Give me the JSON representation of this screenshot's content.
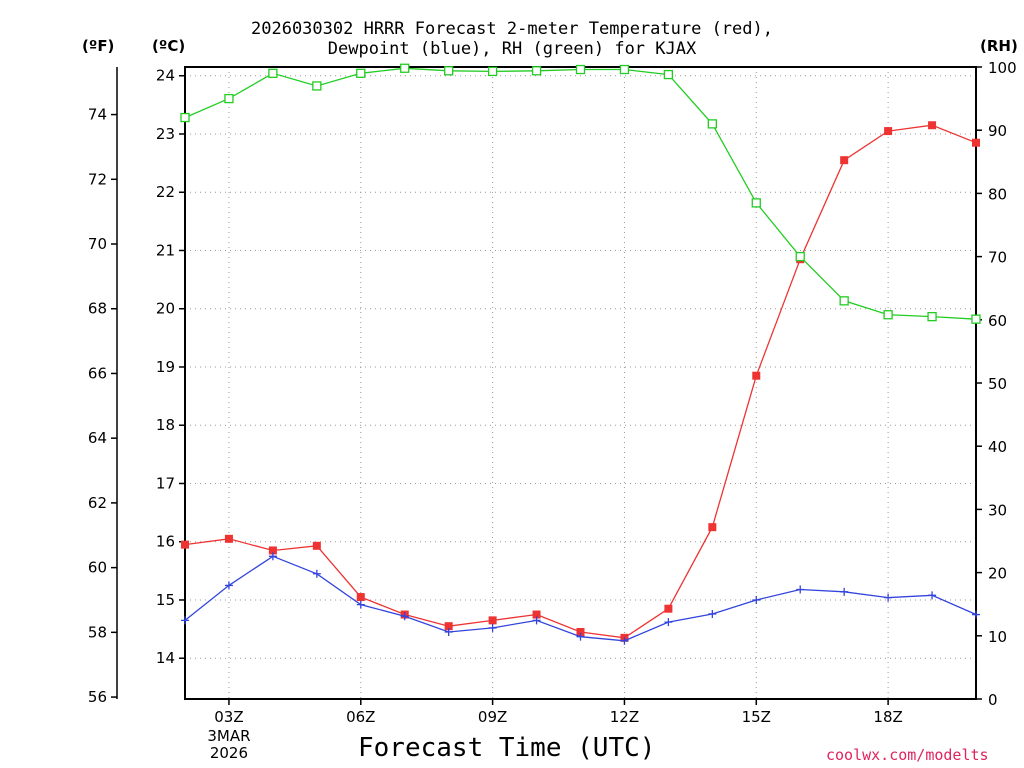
{
  "header": {
    "title_line1": "2026030302 HRRR Forecast 2-meter Temperature (red),",
    "title_line2": "Dewpoint (blue), RH (green) for KJAX"
  },
  "units": {
    "fahrenheit": "(ºF)",
    "celsius": "(ºC)",
    "rh": "(RH)"
  },
  "footer": {
    "xlabel": "Forecast Time (UTC)",
    "credit": "coolwx.com/modelts"
  },
  "colors": {
    "temperature": "#ee3333",
    "dewpoint": "#3344dd",
    "rh": "#22cc22",
    "credit": "#e0245e"
  },
  "chart_data": {
    "type": "line",
    "title": "2026030302 HRRR Forecast 2-meter Temperature (red), Dewpoint (blue), RH (green) for KJAX",
    "xlabel": "Forecast Time (UTC)",
    "x_hours": [
      2,
      3,
      4,
      5,
      6,
      7,
      8,
      9,
      10,
      11,
      12,
      13,
      14,
      15,
      16,
      17,
      18,
      19,
      20
    ],
    "xlim": [
      2,
      20
    ],
    "x_ticks": [
      {
        "hour": 3,
        "label": "03Z",
        "sublabels": [
          "3MAR",
          "2026"
        ]
      },
      {
        "hour": 6,
        "label": "06Z",
        "sublabels": []
      },
      {
        "hour": 9,
        "label": "09Z",
        "sublabels": []
      },
      {
        "hour": 12,
        "label": "12Z",
        "sublabels": []
      },
      {
        "hour": 15,
        "label": "15Z",
        "sublabels": []
      },
      {
        "hour": 18,
        "label": "18Z",
        "sublabels": []
      }
    ],
    "y_celsius": {
      "label": "(ºC)",
      "ylim": [
        13.3,
        24.15
      ],
      "ticks": [
        14,
        15,
        16,
        17,
        18,
        19,
        20,
        21,
        22,
        23,
        24
      ]
    },
    "y_fahrenheit": {
      "label": "(ºF)",
      "ylim": [
        55.94,
        75.47
      ],
      "ticks": [
        56,
        58,
        60,
        62,
        64,
        66,
        68,
        70,
        72,
        74
      ]
    },
    "y_rh": {
      "label": "(RH)",
      "ylim": [
        0,
        100
      ],
      "ticks": [
        0,
        10,
        20,
        30,
        40,
        50,
        60,
        70,
        80,
        90,
        100
      ]
    },
    "series": [
      {
        "name": "Temperature",
        "axis": "celsius",
        "color": "#ee3333",
        "marker": "filled-square",
        "values": [
          15.95,
          16.05,
          15.85,
          15.93,
          15.05,
          14.75,
          14.55,
          14.65,
          14.75,
          14.45,
          14.35,
          14.85,
          16.25,
          18.85,
          20.85,
          22.55,
          23.05,
          23.15,
          22.85
        ]
      },
      {
        "name": "Dewpoint",
        "axis": "celsius",
        "color": "#3344dd",
        "marker": "plus",
        "values": [
          14.65,
          15.25,
          15.75,
          15.45,
          14.92,
          14.72,
          14.45,
          14.52,
          14.65,
          14.37,
          14.3,
          14.62,
          14.76,
          15.0,
          15.18,
          15.14,
          15.04,
          15.08,
          14.75
        ]
      },
      {
        "name": "RH",
        "axis": "rh",
        "color": "#22cc22",
        "marker": "open-square",
        "values": [
          92,
          95,
          99,
          97,
          99,
          99.8,
          99.4,
          99.3,
          99.4,
          99.6,
          99.6,
          98.8,
          91,
          78.5,
          70,
          63,
          60.8,
          60.5,
          60.1
        ]
      }
    ],
    "grid": true,
    "legend": "title"
  }
}
